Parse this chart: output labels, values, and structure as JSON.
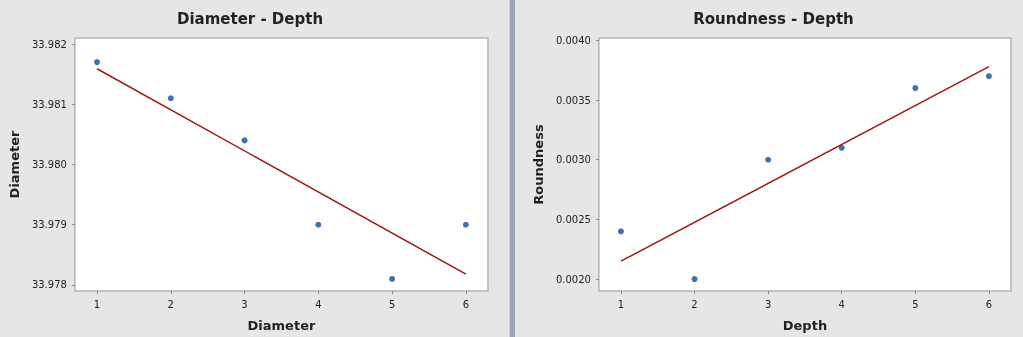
{
  "chart_data": [
    {
      "type": "scatter",
      "title": "Diameter - Depth",
      "xlabel": "Diameter",
      "ylabel": "Diameter",
      "xlim": [
        0.7,
        6.3
      ],
      "xticks": [
        1,
        2,
        3,
        4,
        5,
        6
      ],
      "ylim": [
        33.9779,
        33.9821
      ],
      "yticks": [
        {
          "value": 33.978,
          "label": "33.978"
        },
        {
          "value": 33.979,
          "label": "33.979"
        },
        {
          "value": 33.98,
          "label": "33.980"
        },
        {
          "value": 33.981,
          "label": "33.981"
        },
        {
          "value": 33.982,
          "label": "33.982"
        }
      ],
      "grid": false,
      "marker": "circle",
      "series": [
        {
          "color": "#0f4f9a",
          "x": [
            1,
            2,
            3,
            4,
            5,
            6
          ],
          "values": [
            33.9817,
            33.9811,
            33.9804,
            33.979,
            33.9781,
            33.979
          ]
        },
        {
          "type": "line",
          "color": "#a01818",
          "marker": "none",
          "line_style": "solid",
          "x": [
            1,
            6
          ],
          "values": [
            33.98159,
            33.97818
          ]
        }
      ]
    },
    {
      "type": "scatter",
      "title": "Roundness - Depth",
      "xlabel": "Depth",
      "ylabel": "Roundness",
      "xlim": [
        0.7,
        6.3
      ],
      "xticks": [
        1,
        2,
        3,
        4,
        5,
        6
      ],
      "ylim": [
        0.0019,
        0.00402
      ],
      "yticks": [
        {
          "value": 0.002,
          "label": "0.0020"
        },
        {
          "value": 0.0025,
          "label": "0.0025"
        },
        {
          "value": 0.003,
          "label": "0.0030"
        },
        {
          "value": 0.0035,
          "label": "0.0035"
        },
        {
          "value": 0.004,
          "label": "0.0040"
        }
      ],
      "grid": false,
      "marker": "circle",
      "series": [
        {
          "color": "#0f4f9a",
          "x": [
            1,
            2,
            3,
            4,
            5,
            6
          ],
          "values": [
            0.0024,
            0.002,
            0.003,
            0.0031,
            0.0036,
            0.0037
          ]
        },
        {
          "type": "line",
          "color": "#a01818",
          "marker": "none",
          "line_style": "solid",
          "x": [
            1,
            6
          ],
          "values": [
            0.00215,
            0.00378
          ]
        }
      ]
    }
  ]
}
